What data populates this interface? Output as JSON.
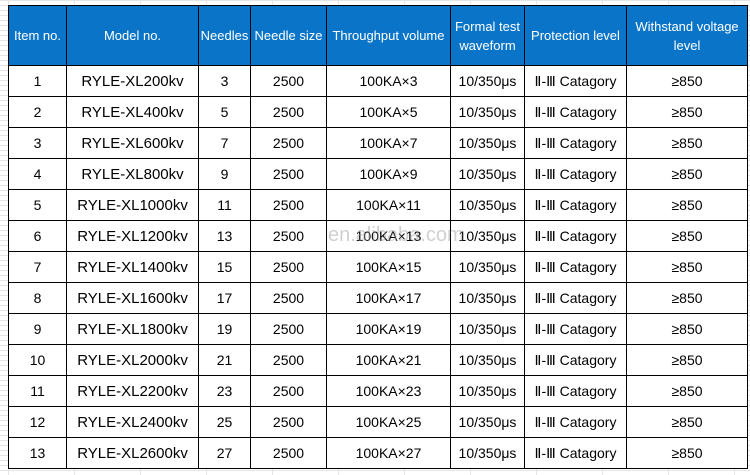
{
  "table": {
    "header": [
      "Item no.",
      "Model no.",
      "Needles",
      "Needle size",
      "Throughput volume",
      "Formal test waveform",
      "Protection level",
      "Withstand voltage level"
    ],
    "rows": [
      [
        "1",
        "RYLE-XL200kv",
        "3",
        "2500",
        "100KA×3",
        "10/350μs",
        "Ⅱ-Ⅲ Catagory",
        "≥850"
      ],
      [
        "2",
        "RYLE-XL400kv",
        "5",
        "2500",
        "100KA×5",
        "10/350μs",
        "Ⅱ-Ⅲ Catagory",
        "≥850"
      ],
      [
        "3",
        "RYLE-XL600kv",
        "7",
        "2500",
        "100KA×7",
        "10/350μs",
        "Ⅱ-Ⅲ Catagory",
        "≥850"
      ],
      [
        "4",
        "RYLE-XL800kv",
        "9",
        "2500",
        "100KA×9",
        "10/350μs",
        "Ⅱ-Ⅲ Catagory",
        "≥850"
      ],
      [
        "5",
        "RYLE-XL1000kv",
        "11",
        "2500",
        "100KA×11",
        "10/350μs",
        "Ⅱ-Ⅲ Catagory",
        "≥850"
      ],
      [
        "6",
        "RYLE-XL1200kv",
        "13",
        "2500",
        "100KA×13",
        "10/350μs",
        "Ⅱ-Ⅲ Catagory",
        "≥850"
      ],
      [
        "7",
        "RYLE-XL1400kv",
        "15",
        "2500",
        "100KA×15",
        "10/350μs",
        "Ⅱ-Ⅲ Catagory",
        "≥850"
      ],
      [
        "8",
        "RYLE-XL1600kv",
        "17",
        "2500",
        "100KA×17",
        "10/350μs",
        "Ⅱ-Ⅲ Catagory",
        "≥850"
      ],
      [
        "9",
        "RYLE-XL1800kv",
        "19",
        "2500",
        "100KA×19",
        "10/350μs",
        "Ⅱ-Ⅲ Catagory",
        "≥850"
      ],
      [
        "10",
        "RYLE-XL2000kv",
        "21",
        "2500",
        "100KA×21",
        "10/350μs",
        "Ⅱ-Ⅲ Catagory",
        "≥850"
      ],
      [
        "11",
        "RYLE-XL2200kv",
        "23",
        "2500",
        "100KA×23",
        "10/350μs",
        "Ⅱ-Ⅲ Catagory",
        "≥850"
      ],
      [
        "12",
        "RYLE-XL2400kv",
        "25",
        "2500",
        "100KA×25",
        "10/350μs",
        "Ⅱ-Ⅲ Catagory",
        "≥850"
      ],
      [
        "13",
        "RYLE-XL2600kv",
        "27",
        "2500",
        "100KA×27",
        "10/350μs",
        "Ⅱ-Ⅲ Catagory",
        "≥850"
      ]
    ]
  },
  "watermark": "en.alibaba.com"
}
